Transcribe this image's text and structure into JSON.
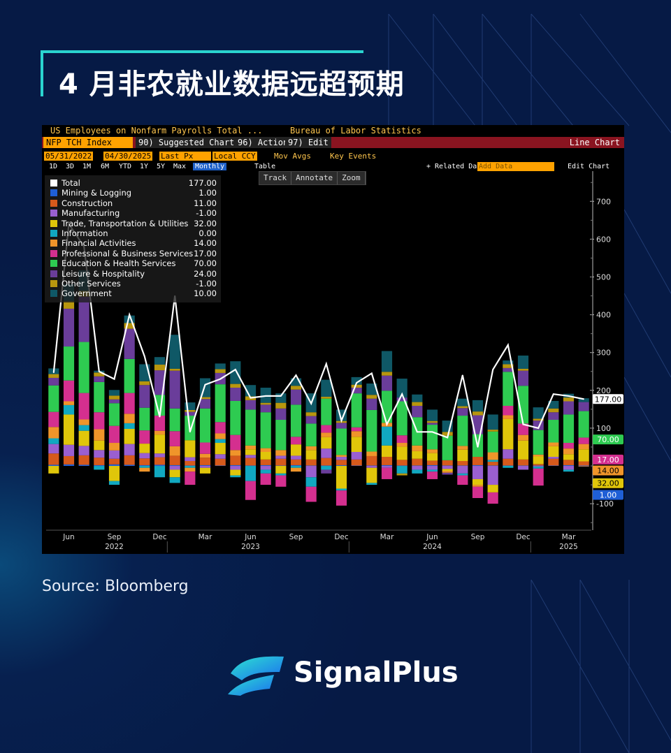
{
  "page": {
    "title": "4 月非农就业数据远超预期",
    "source": "Source: Bloomberg",
    "brand": "SignalPlus"
  },
  "terminal": {
    "security_desc": "US Employees on Nonfarm Payrolls Total ...",
    "source_name": "Bureau of Labor Statistics",
    "ticker": "NFP TCH Index",
    "menu": [
      "90) Suggested Charts",
      "96) Actions",
      "97) Edit"
    ],
    "chart_kind": "Line Chart",
    "start_date": "05/31/2022",
    "end_date": "04/30/2025",
    "price_field": "Last Px",
    "currency": "Local CCY",
    "mov_avgs": "Mov Avgs",
    "key_events": "Key Events",
    "periods": [
      "1D",
      "3D",
      "1M",
      "6M",
      "YTD",
      "1Y",
      "5Y",
      "Max"
    ],
    "frequency": "Monthly",
    "table_label": "Table",
    "related": "+ Related Dat",
    "add_data_placeholder": "Add Data",
    "edit_chart": "Edit Chart",
    "tools": [
      "Track",
      "Annotate",
      "Zoom"
    ]
  },
  "chart_data": {
    "type": "bar",
    "stacked": true,
    "ylim": [
      -170,
      780
    ],
    "yticks": [
      -100,
      100,
      200,
      300,
      400,
      500,
      600,
      700
    ],
    "x_tick_labels": [
      "Jun",
      "Sep",
      "Dec",
      "Mar",
      "Jun",
      "Sep",
      "Dec",
      "Mar",
      "Jun",
      "Sep",
      "Dec",
      "Mar"
    ],
    "x_tick_index": [
      1,
      4,
      7,
      10,
      13,
      16,
      19,
      22,
      25,
      28,
      31,
      34
    ],
    "year_labels": [
      "2022",
      "2023",
      "2024",
      "2025"
    ],
    "year_index": [
      4,
      13,
      25,
      34
    ],
    "categories": [
      "May22",
      "Jun22",
      "Jul22",
      "Aug22",
      "Sep22",
      "Oct22",
      "Nov22",
      "Dec22",
      "Jan23",
      "Feb23",
      "Mar23",
      "Apr23",
      "May23",
      "Jun23",
      "Jul23",
      "Aug23",
      "Sep23",
      "Oct23",
      "Nov23",
      "Dec23",
      "Jan24",
      "Feb24",
      "Mar24",
      "Apr24",
      "May24",
      "Jun24",
      "Jul24",
      "Aug24",
      "Sep24",
      "Oct24",
      "Nov24",
      "Dec24",
      "Jan25",
      "Feb25",
      "Mar25",
      "Apr25"
    ],
    "series": [
      {
        "name": "Mining & Logging",
        "color": "#1f5fd6",
        "values": [
          3,
          4,
          3,
          2,
          4,
          3,
          2,
          3,
          2,
          1,
          2,
          1,
          2,
          1,
          2,
          1,
          2,
          1,
          1,
          2,
          1,
          1,
          2,
          1,
          1,
          2,
          1,
          1,
          2,
          1,
          1,
          1,
          1,
          1,
          2,
          1
        ]
      },
      {
        "name": "Construction",
        "color": "#d65a1c",
        "values": [
          30,
          22,
          25,
          20,
          15,
          25,
          18,
          20,
          25,
          12,
          20,
          18,
          25,
          20,
          15,
          18,
          15,
          16,
          20,
          14,
          16,
          25,
          22,
          15,
          18,
          12,
          14,
          12,
          22,
          10,
          18,
          16,
          4,
          18,
          14,
          11
        ]
      },
      {
        "name": "Manufacturing",
        "color": "#9a5fd0",
        "values": [
          25,
          30,
          25,
          20,
          22,
          30,
          14,
          10,
          -10,
          10,
          -5,
          12,
          -10,
          8,
          -10,
          8,
          10,
          -30,
          25,
          8,
          20,
          -5,
          -5,
          0,
          -10,
          -10,
          -8,
          -20,
          -35,
          -50,
          25,
          -10,
          -2,
          5,
          -10,
          -1
        ]
      },
      {
        "name": "Trade, Transportation & Utilities",
        "color": "#e0c60a",
        "values": [
          -20,
          80,
          40,
          25,
          -40,
          40,
          25,
          50,
          -20,
          45,
          -15,
          30,
          -15,
          15,
          20,
          -20,
          30,
          25,
          30,
          -60,
          40,
          -40,
          30,
          35,
          20,
          20,
          -5,
          30,
          -15,
          -20,
          80,
          50,
          20,
          28,
          15,
          32
        ]
      },
      {
        "name": "Information",
        "color": "#11a8c0",
        "values": [
          15,
          25,
          15,
          -10,
          -10,
          15,
          -5,
          -30,
          -15,
          -5,
          0,
          10,
          -5,
          -40,
          -10,
          -5,
          -5,
          -25,
          -10,
          -5,
          0,
          -5,
          50,
          -20,
          -10,
          -5,
          0,
          -5,
          0,
          5,
          -5,
          0,
          -5,
          0,
          -5,
          0
        ]
      },
      {
        "name": "Financial Activities",
        "color": "#f0952a",
        "values": [
          30,
          10,
          15,
          30,
          20,
          25,
          -10,
          10,
          25,
          -10,
          10,
          15,
          15,
          10,
          10,
          15,
          -10,
          10,
          12,
          5,
          15,
          12,
          10,
          10,
          15,
          10,
          -5,
          10,
          -5,
          20,
          10,
          15,
          5,
          10,
          15,
          14
        ]
      },
      {
        "name": "Professional & Business Services",
        "color": "#d42f8f",
        "values": [
          40,
          55,
          70,
          45,
          45,
          55,
          35,
          40,
          40,
          -35,
          30,
          30,
          40,
          -50,
          -30,
          -30,
          20,
          -40,
          20,
          -40,
          10,
          0,
          -30,
          20,
          0,
          -20,
          0,
          -25,
          -30,
          -30,
          25,
          30,
          -45,
          0,
          15,
          17
        ]
      },
      {
        "name": "Education & Health Services",
        "color": "#2ecb51",
        "values": [
          70,
          90,
          135,
          80,
          60,
          90,
          60,
          55,
          60,
          65,
          90,
          100,
          90,
          95,
          95,
          80,
          85,
          60,
          70,
          70,
          90,
          110,
          85,
          90,
          75,
          65,
          65,
          80,
          60,
          55,
          90,
          100,
          65,
          60,
          75,
          70
        ]
      },
      {
        "name": "Leisure & Hospitality",
        "color": "#6a3d9a",
        "values": [
          20,
          100,
          120,
          15,
          10,
          80,
          60,
          65,
          100,
          10,
          25,
          30,
          35,
          25,
          20,
          30,
          40,
          20,
          -10,
          15,
          15,
          30,
          40,
          10,
          30,
          5,
          -5,
          20,
          50,
          0,
          10,
          40,
          25,
          20,
          35,
          24
        ]
      },
      {
        "name": "Other Services",
        "color": "#b8960e",
        "values": [
          10,
          20,
          15,
          10,
          10,
          15,
          10,
          15,
          5,
          5,
          5,
          10,
          10,
          10,
          5,
          15,
          10,
          10,
          5,
          5,
          8,
          10,
          10,
          -5,
          10,
          5,
          10,
          5,
          10,
          5,
          10,
          5,
          5,
          10,
          10,
          -1
        ]
      },
      {
        "name": "Government",
        "color": "#0f5866",
        "values": [
          15,
          45,
          55,
          5,
          15,
          20,
          45,
          20,
          90,
          20,
          50,
          15,
          60,
          30,
          40,
          25,
          20,
          50,
          45,
          30,
          20,
          30,
          55,
          50,
          20,
          30,
          30,
          20,
          30,
          40,
          10,
          35,
          30,
          20,
          10,
          10
        ]
      }
    ],
    "total": {
      "name": "Total",
      "color": "#ffffff",
      "values": [
        247,
        640,
        580,
        250,
        230,
        400,
        290,
        130,
        450,
        90,
        215,
        230,
        255,
        180,
        185,
        185,
        240,
        165,
        270,
        120,
        220,
        245,
        110,
        190,
        90,
        90,
        75,
        240,
        50,
        255,
        320,
        110,
        100,
        190,
        185,
        177
      ]
    },
    "legend_values": {
      "Total": "177.00",
      "Mining & Logging": "1.00",
      "Construction": "11.00",
      "Manufacturing": "-1.00",
      "Trade, Transportation & Utilities": "32.00",
      "Information": "0.00",
      "Financial Activities": "14.00",
      "Professional & Business Services": "17.00",
      "Education & Health Services": "70.00",
      "Leisure & Hospitality": "24.00",
      "Other Services": "-1.00",
      "Government": "10.00"
    },
    "right_tags": [
      {
        "text": "177.00",
        "value": 177,
        "bg": "#ffffff",
        "fg": "#000000"
      },
      {
        "text": "70.00",
        "value": 70,
        "bg": "#2ecb51",
        "fg": "#ffffff"
      },
      {
        "text": "17.00",
        "value": 17,
        "bg": "#d42f8f",
        "fg": "#ffffff"
      },
      {
        "text": "14.00",
        "value": 14,
        "bg": "#f0952a",
        "fg": "#000000"
      },
      {
        "text": "32.00",
        "value": 32,
        "bg": "#e0c60a",
        "fg": "#000000"
      },
      {
        "text": "1.00",
        "value": 1,
        "bg": "#1f5fd6",
        "fg": "#ffffff"
      }
    ]
  }
}
